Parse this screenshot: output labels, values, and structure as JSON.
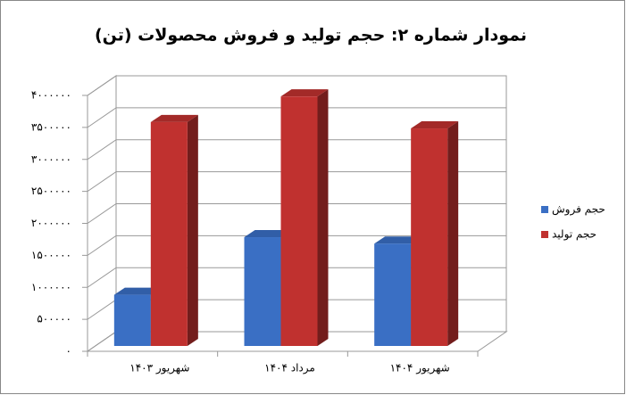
{
  "chart_data": {
    "type": "bar3d",
    "title": "نمودار شماره ۲: حجم تولید و فروش محصولات (تن)",
    "categories": [
      "شهریور ۱۴۰۳",
      "مرداد ۱۴۰۴",
      "شهریور ۱۴۰۴"
    ],
    "series": [
      {
        "name": "حجم فروش",
        "color": "#3a6fc4",
        "values": [
          800000,
          1700000,
          1600000
        ]
      },
      {
        "name": "حجم تولید",
        "color": "#c0312f",
        "values": [
          3500000,
          3900000,
          3400000
        ]
      }
    ],
    "ylim": [
      0,
      4000000
    ],
    "yticks": [
      {
        "value": 0,
        "label": "۰"
      },
      {
        "value": 500000,
        "label": "۵۰۰۰۰۰"
      },
      {
        "value": 1000000,
        "label": "۱۰۰۰۰۰۰"
      },
      {
        "value": 1500000,
        "label": "۱۵۰۰۰۰۰"
      },
      {
        "value": 2000000,
        "label": "۲۰۰۰۰۰۰"
      },
      {
        "value": 2500000,
        "label": "۲۵۰۰۰۰۰"
      },
      {
        "value": 3000000,
        "label": "۳۰۰۰۰۰۰"
      },
      {
        "value": 3500000,
        "label": "۳۵۰۰۰۰۰"
      },
      {
        "value": 4000000,
        "label": "۴۰۰۰۰۰۰"
      }
    ],
    "grid": true,
    "legend": "right"
  }
}
